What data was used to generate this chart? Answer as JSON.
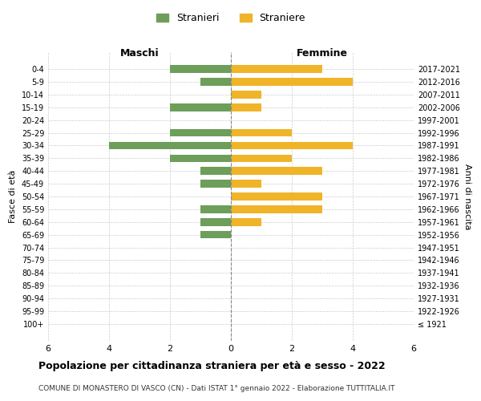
{
  "age_groups": [
    "100+",
    "95-99",
    "90-94",
    "85-89",
    "80-84",
    "75-79",
    "70-74",
    "65-69",
    "60-64",
    "55-59",
    "50-54",
    "45-49",
    "40-44",
    "35-39",
    "30-34",
    "25-29",
    "20-24",
    "15-19",
    "10-14",
    "5-9",
    "0-4"
  ],
  "birth_years": [
    "≤ 1921",
    "1922-1926",
    "1927-1931",
    "1932-1936",
    "1937-1941",
    "1942-1946",
    "1947-1951",
    "1952-1956",
    "1957-1961",
    "1962-1966",
    "1967-1971",
    "1972-1976",
    "1977-1981",
    "1982-1986",
    "1987-1991",
    "1992-1996",
    "1997-2001",
    "2002-2006",
    "2007-2011",
    "2012-2016",
    "2017-2021"
  ],
  "maschi": [
    0,
    0,
    0,
    0,
    0,
    0,
    0,
    1,
    1,
    1,
    0,
    1,
    1,
    2,
    4,
    2,
    0,
    2,
    0,
    1,
    2
  ],
  "femmine": [
    0,
    0,
    0,
    0,
    0,
    0,
    0,
    0,
    1,
    3,
    3,
    1,
    3,
    2,
    4,
    2,
    0,
    1,
    1,
    4,
    3
  ],
  "male_color": "#6d9e5a",
  "female_color": "#f0b429",
  "title": "Popolazione per cittadinanza straniera per età e sesso - 2022",
  "subtitle": "COMUNE DI MONASTERO DI VASCO (CN) - Dati ISTAT 1° gennaio 2022 - Elaborazione TUTTITALIA.IT",
  "xlabel_left": "Maschi",
  "xlabel_right": "Femmine",
  "ylabel_left": "Fasce di età",
  "ylabel_right": "Anni di nascita",
  "legend_male": "Stranieri",
  "legend_female": "Straniere",
  "xlim": 6,
  "background_color": "#ffffff",
  "grid_color": "#cccccc"
}
